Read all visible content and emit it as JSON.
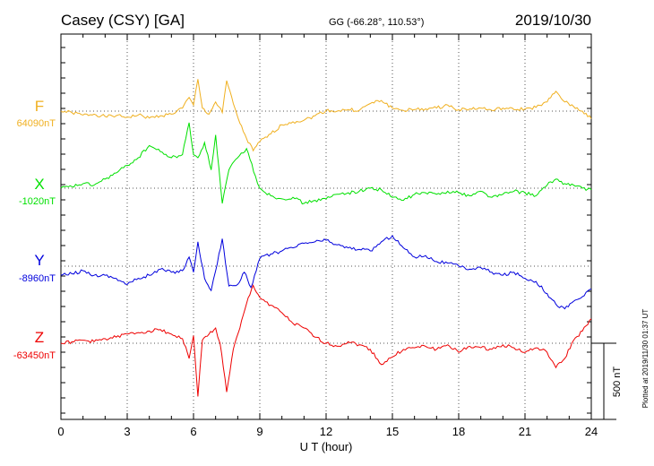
{
  "header": {
    "station": "Casey (CSY)  [GA]",
    "coords": "GG (-66.28°, 110.53°)",
    "date": "2019/10/30"
  },
  "scale_label": "500 nT",
  "plotted_note": "Plotted at 2019/11/30 01:37 UT",
  "chart_data": {
    "type": "line",
    "title": "Casey (CSY)  [GA]",
    "xlabel": "U T (hour)",
    "ylabel": "",
    "xlim": [
      0,
      24
    ],
    "x_ticks": [
      0,
      3,
      6,
      9,
      12,
      15,
      18,
      21,
      24
    ],
    "x_tick_labels": [
      "0",
      "3",
      "6",
      "9",
      "12",
      "15",
      "18",
      "21",
      "24"
    ],
    "scale_bar_nT": 500,
    "grid": true,
    "series": [
      {
        "name": "F",
        "baseline_label": "64090nT",
        "color": "#f0b020",
        "x": [
          0,
          0.5,
          1,
          1.5,
          2,
          2.5,
          3,
          3.5,
          4,
          4.5,
          5,
          5.5,
          5.8,
          6,
          6.2,
          6.4,
          6.7,
          7,
          7.3,
          7.5,
          7.8,
          8.1,
          8.4,
          8.7,
          9,
          9.5,
          10,
          10.5,
          11,
          11.5,
          12,
          12.5,
          13,
          13.5,
          14,
          14.5,
          15,
          15.5,
          16,
          16.5,
          17,
          17.5,
          18,
          18.5,
          19,
          19.5,
          20,
          20.5,
          21,
          21.5,
          22,
          22.4,
          22.8,
          23.2,
          23.6,
          24
        ],
        "values": [
          0,
          -10,
          -25,
          -20,
          -35,
          -30,
          -40,
          -25,
          -45,
          -30,
          -20,
          20,
          90,
          40,
          210,
          20,
          -20,
          60,
          -10,
          200,
          50,
          -80,
          -180,
          -260,
          -200,
          -150,
          -90,
          -70,
          -60,
          -30,
          5,
          0,
          10,
          5,
          50,
          70,
          20,
          5,
          10,
          15,
          20,
          40,
          10,
          15,
          20,
          5,
          20,
          10,
          15,
          25,
          60,
          130,
          60,
          30,
          0,
          -50
        ]
      },
      {
        "name": "X",
        "baseline_label": "-1020nT",
        "color": "#00e000",
        "x": [
          0,
          0.5,
          1,
          1.5,
          2,
          2.5,
          3,
          3.5,
          4,
          4.5,
          5,
          5.5,
          5.8,
          6,
          6.2,
          6.5,
          6.8,
          7,
          7.3,
          7.6,
          8,
          8.4,
          8.8,
          9,
          9.5,
          10,
          10.5,
          11,
          11.5,
          12,
          12.5,
          13,
          13.5,
          14,
          14.5,
          15,
          15.5,
          16,
          16.5,
          17,
          17.5,
          18,
          18.5,
          19,
          19.5,
          20,
          20.5,
          21,
          21.5,
          22,
          22.4,
          22.8,
          23.2,
          23.6,
          24
        ],
        "values": [
          0,
          10,
          30,
          20,
          60,
          100,
          150,
          200,
          280,
          240,
          200,
          220,
          430,
          220,
          200,
          300,
          120,
          350,
          -100,
          120,
          200,
          260,
          80,
          0,
          -50,
          -70,
          -60,
          -100,
          -80,
          -70,
          -40,
          -30,
          -20,
          0,
          -10,
          -60,
          -80,
          -40,
          -30,
          -40,
          -20,
          -30,
          -50,
          -20,
          -60,
          -40,
          -20,
          -30,
          -50,
          20,
          60,
          30,
          20,
          0,
          -10
        ]
      },
      {
        "name": "Y",
        "baseline_label": "-8960nT",
        "color": "#0000dd",
        "x": [
          0,
          0.5,
          1,
          1.5,
          2,
          2.5,
          3,
          3.5,
          4,
          4.5,
          5,
          5.5,
          5.8,
          6,
          6.2,
          6.5,
          6.8,
          7,
          7.3,
          7.6,
          8,
          8.3,
          8.6,
          9,
          9.5,
          10,
          10.5,
          11,
          11.5,
          12,
          12.5,
          13,
          13.5,
          14,
          14.5,
          15,
          15.5,
          16,
          16.5,
          17,
          17.5,
          18,
          18.5,
          19,
          19.5,
          20,
          20.5,
          21,
          21.5,
          22,
          22.4,
          22.8,
          23.2,
          23.6,
          24
        ],
        "values": [
          -60,
          -50,
          -30,
          -60,
          -60,
          -80,
          -120,
          -80,
          -60,
          -20,
          -40,
          -30,
          60,
          -40,
          160,
          -80,
          -160,
          -30,
          180,
          -130,
          -120,
          -40,
          -140,
          50,
          80,
          100,
          120,
          150,
          160,
          170,
          140,
          120,
          110,
          100,
          160,
          200,
          120,
          60,
          70,
          30,
          20,
          0,
          -20,
          -10,
          -40,
          -60,
          -40,
          -80,
          -100,
          -180,
          -250,
          -280,
          -230,
          -200,
          -150
        ]
      },
      {
        "name": "Z",
        "baseline_label": "-63450nT",
        "color": "#ee0000",
        "x": [
          0,
          0.5,
          1,
          1.5,
          2,
          2.5,
          3,
          3.5,
          4,
          4.5,
          5,
          5.5,
          5.8,
          6,
          6.2,
          6.4,
          6.7,
          7,
          7.2,
          7.5,
          7.8,
          8.1,
          8.4,
          8.7,
          9,
          9.5,
          10,
          10.5,
          11,
          11.5,
          12,
          12.5,
          13,
          13.5,
          14,
          14.5,
          15,
          15.5,
          16,
          16.5,
          17,
          17.5,
          18,
          18.5,
          19,
          19.5,
          20,
          20.5,
          21,
          21.5,
          22,
          22.4,
          22.8,
          23.2,
          23.6,
          24
        ],
        "values": [
          0,
          10,
          20,
          10,
          30,
          40,
          60,
          70,
          80,
          90,
          60,
          30,
          -100,
          50,
          -350,
          20,
          60,
          100,
          0,
          -320,
          -40,
          100,
          260,
          380,
          300,
          250,
          200,
          130,
          100,
          40,
          0,
          -20,
          10,
          -10,
          -40,
          -140,
          -90,
          -40,
          -30,
          -20,
          -40,
          -10,
          -60,
          -20,
          -30,
          -40,
          -10,
          -30,
          -60,
          -30,
          -60,
          -160,
          -100,
          20,
          80,
          160
        ]
      }
    ]
  }
}
